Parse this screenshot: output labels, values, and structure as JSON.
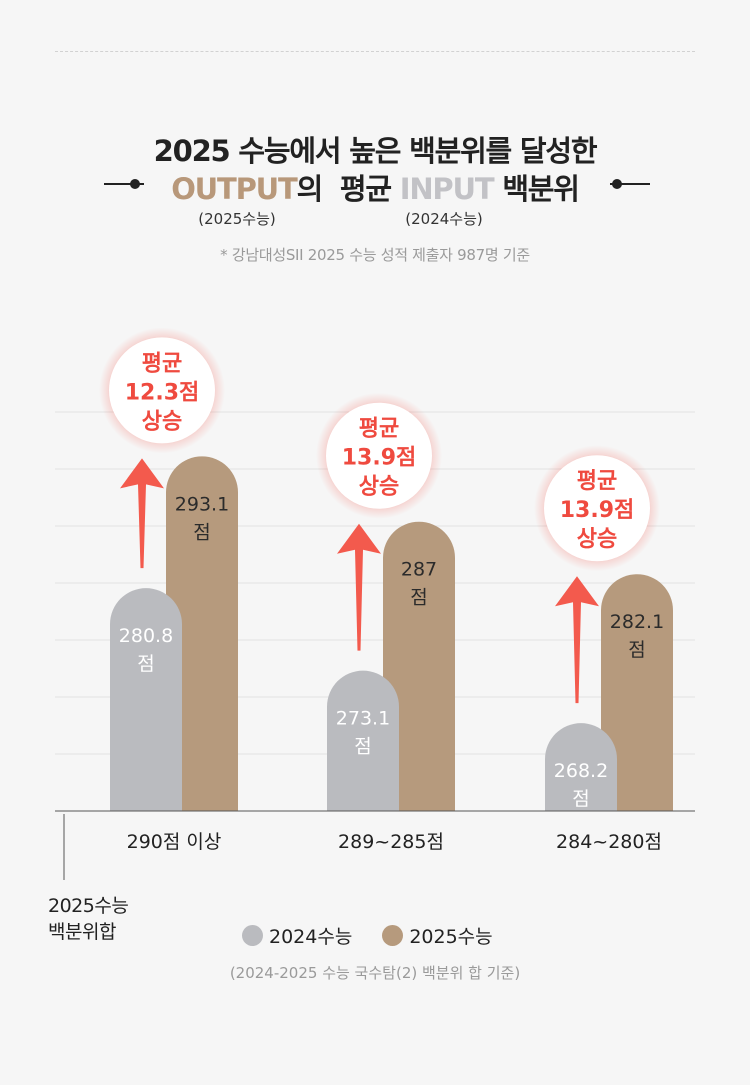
{
  "header": {
    "title_line1": "2025 수능에서 높은 백분위를 달성한",
    "output_word": "OUTPUT",
    "of_word": "의",
    "avg_word": "평균",
    "input_word": "INPUT",
    "percentile_word": "백분위",
    "output_sub": "(2025수능)",
    "input_sub": "(2024수능)",
    "note": "* 강남대성SII 2025 수능 성적 제출자 987명 기준"
  },
  "colors": {
    "series_2024": "#babbbf",
    "series_2025": "#b69a7d",
    "arrow": "#f35a4d",
    "badge_text": "#ef4a3f",
    "grid": "#e2e2e2"
  },
  "chart_data": {
    "type": "bar",
    "categories": [
      "290점 이상",
      "289~285점",
      "284~280점"
    ],
    "series": [
      {
        "name": "2024수능",
        "values": [
          280.8,
          273.1,
          268.2
        ],
        "labels": [
          "280.8",
          "273.1",
          "268.2"
        ]
      },
      {
        "name": "2025수능",
        "values": [
          293.1,
          287,
          282.1
        ],
        "labels": [
          "293.1",
          "287",
          "282.1"
        ]
      }
    ],
    "unit_label": "점",
    "ylim": [
      260,
      295
    ],
    "ylabel_lines": [
      "2025수능",
      "백분위합"
    ],
    "legend_position": "bottom",
    "annotations": [
      {
        "lines": [
          "평균",
          "12.3점",
          "상승"
        ]
      },
      {
        "lines": [
          "평균",
          "13.9점",
          "상승"
        ]
      },
      {
        "lines": [
          "평균",
          "13.9점",
          "상승"
        ]
      }
    ],
    "grid": true
  },
  "footer": {
    "legend": [
      "2024수능",
      "2025수능"
    ],
    "note": "(2024-2025 수능 국수탐(2) 백분위 합 기준)"
  }
}
